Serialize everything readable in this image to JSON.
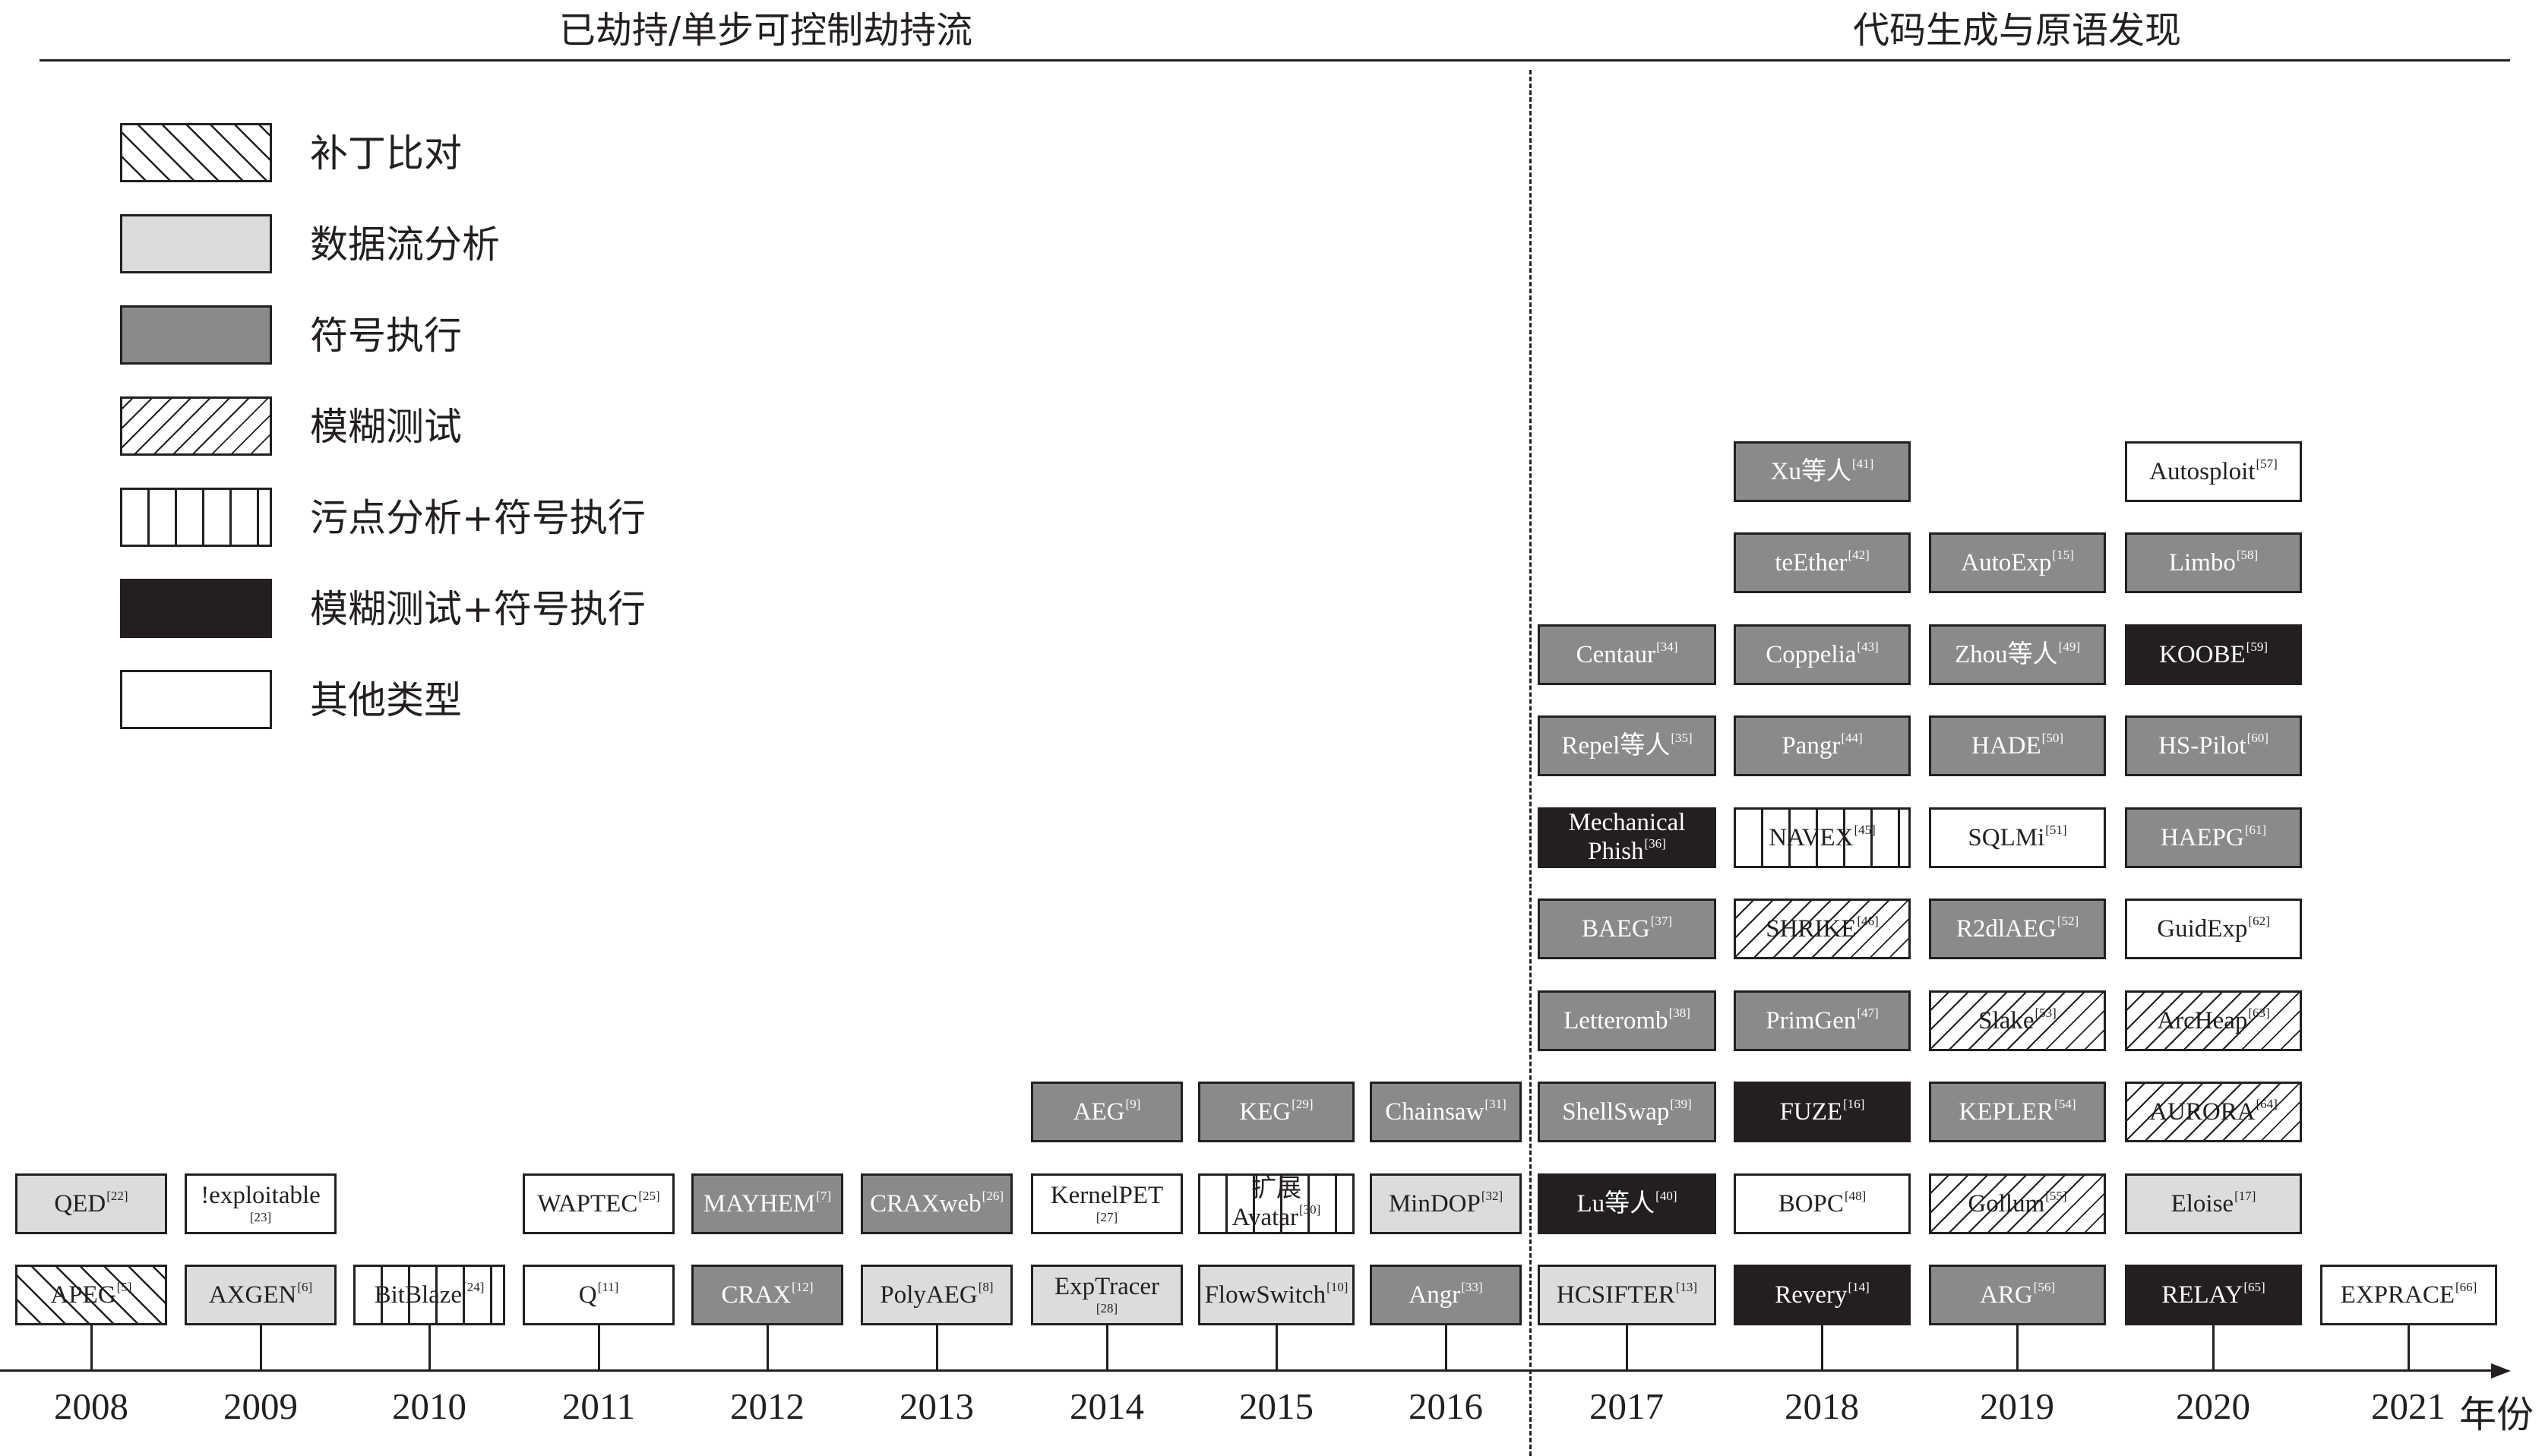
{
  "headers": {
    "left_section": "已劫持/单步可控制劫持流",
    "right_section": "代码生成与原语发现"
  },
  "legend": [
    {
      "key": "patch",
      "label": "补丁比对"
    },
    {
      "key": "light",
      "label": "数据流分析"
    },
    {
      "key": "gray",
      "label": "符号执行"
    },
    {
      "key": "fuzz",
      "label": "模糊测试"
    },
    {
      "key": "taint",
      "label": "污点分析+符号执行"
    },
    {
      "key": "black",
      "label": "模糊测试+符号执行"
    },
    {
      "key": "white",
      "label": "其他类型"
    }
  ],
  "axis": {
    "unit_label": "年份"
  },
  "years": [
    "2008",
    "2009",
    "2010",
    "2011",
    "2012",
    "2013",
    "2014",
    "2015",
    "2016",
    "2017",
    "2018",
    "2019",
    "2020",
    "2021"
  ],
  "colors": {
    "ink": "#231f20",
    "light_fill": "#dcdcdd",
    "gray_fill": "#8a8a8c",
    "black_fill": "#231f20",
    "white_fill": "#ffffff"
  },
  "columns": [
    {
      "year": "2008",
      "tools": [
        {
          "name": "APEG",
          "ref": "[5]",
          "type": "patch"
        },
        {
          "name": "QED",
          "ref": "[22]",
          "type": "light"
        }
      ]
    },
    {
      "year": "2009",
      "tools": [
        {
          "name": "AXGEN",
          "ref": "[6]",
          "type": "light"
        },
        {
          "name": "!exploitable",
          "ref": "[23]",
          "type": "white",
          "ref_below": true
        }
      ]
    },
    {
      "year": "2010",
      "tools": [
        {
          "name": "BitBlaze",
          "ref": "[24]",
          "type": "taint"
        }
      ]
    },
    {
      "year": "2011",
      "tools": [
        {
          "name": "Q",
          "ref": "[11]",
          "type": "white"
        },
        {
          "name": "WAPTEC",
          "ref": "[25]",
          "type": "white"
        }
      ]
    },
    {
      "year": "2012",
      "tools": [
        {
          "name": "CRAX",
          "ref": "[12]",
          "type": "gray"
        },
        {
          "name": "MAYHEM",
          "ref": "[7]",
          "type": "gray"
        }
      ]
    },
    {
      "year": "2013",
      "tools": [
        {
          "name": "PolyAEG",
          "ref": "[8]",
          "type": "light"
        },
        {
          "name": "CRAXweb",
          "ref": "[26]",
          "type": "gray"
        }
      ]
    },
    {
      "year": "2014",
      "tools": [
        {
          "name": "ExpTracer",
          "ref": "[28]",
          "type": "light",
          "ref_below": true
        },
        {
          "name": "KernelPET",
          "ref": "[27]",
          "type": "white",
          "ref_below": true
        },
        {
          "name": "AEG",
          "ref": "[9]",
          "type": "gray"
        }
      ]
    },
    {
      "year": "2015",
      "tools": [
        {
          "name": "FlowSwitch",
          "ref": "[10]",
          "type": "light"
        },
        {
          "name": "扩展Avatar",
          "line1": "扩展",
          "line2": "Avatar",
          "ref": "[30]",
          "type": "taint"
        },
        {
          "name": "KEG",
          "ref": "[29]",
          "type": "gray"
        }
      ]
    },
    {
      "year": "2016",
      "tools": [
        {
          "name": "Angr",
          "ref": "[33]",
          "type": "gray"
        },
        {
          "name": "MinDOP",
          "ref": "[32]",
          "type": "light"
        },
        {
          "name": "Chainsaw",
          "ref": "[31]",
          "type": "gray"
        }
      ]
    },
    {
      "year": "2017",
      "tools": [
        {
          "name": "HCSIFTER",
          "ref": "[13]",
          "type": "light"
        },
        {
          "name": "Lu等人",
          "ref": "[40]",
          "type": "black"
        },
        {
          "name": "ShellSwap",
          "ref": "[39]",
          "type": "gray"
        },
        {
          "name": "Letteromb",
          "ref": "[38]",
          "type": "gray"
        },
        {
          "name": "BAEG",
          "ref": "[37]",
          "type": "gray"
        },
        {
          "name": "Mechanical Phish",
          "line1": "Mechanical",
          "line2": "Phish",
          "ref": "[36]",
          "type": "black"
        },
        {
          "name": "Repel等人",
          "ref": "[35]",
          "type": "gray"
        },
        {
          "name": "Centaur",
          "ref": "[34]",
          "type": "gray"
        }
      ]
    },
    {
      "year": "2018",
      "tools": [
        {
          "name": "Revery",
          "ref": "[14]",
          "type": "black"
        },
        {
          "name": "BOPC",
          "ref": "[48]",
          "type": "white"
        },
        {
          "name": "FUZE",
          "ref": "[16]",
          "type": "black"
        },
        {
          "name": "PrimGen",
          "ref": "[47]",
          "type": "gray"
        },
        {
          "name": "SHRIKE",
          "ref": "[46]",
          "type": "fuzz"
        },
        {
          "name": "NAVEX",
          "ref": "[45]",
          "type": "taint"
        },
        {
          "name": "Pangr",
          "ref": "[44]",
          "type": "gray"
        },
        {
          "name": "Coppelia",
          "ref": "[43]",
          "type": "gray"
        },
        {
          "name": "teEther",
          "ref": "[42]",
          "type": "gray"
        },
        {
          "name": "Xu等人",
          "ref": "[41]",
          "type": "gray"
        }
      ]
    },
    {
      "year": "2019",
      "tools": [
        {
          "name": "ARG",
          "ref": "[56]",
          "type": "gray"
        },
        {
          "name": "Gollum",
          "ref": "[55]",
          "type": "fuzz"
        },
        {
          "name": "KEPLER",
          "ref": "[54]",
          "type": "gray"
        },
        {
          "name": "Slake",
          "ref": "[53]",
          "type": "fuzz"
        },
        {
          "name": "R2dlAEG",
          "ref": "[52]",
          "type": "gray"
        },
        {
          "name": "SQLMi",
          "ref": "[51]",
          "type": "white"
        },
        {
          "name": "HADE",
          "ref": "[50]",
          "type": "gray"
        },
        {
          "name": "Zhou等人",
          "ref": "[49]",
          "type": "gray"
        },
        {
          "name": "AutoExp",
          "ref": "[15]",
          "type": "gray"
        }
      ]
    },
    {
      "year": "2020",
      "tools": [
        {
          "name": "RELAY",
          "ref": "[65]",
          "type": "black"
        },
        {
          "name": "Eloise",
          "ref": "[17]",
          "type": "light"
        },
        {
          "name": "AURORA",
          "ref": "[64]",
          "type": "fuzz"
        },
        {
          "name": "ArcHeap",
          "ref": "[63]",
          "type": "fuzz"
        },
        {
          "name": "GuidExp",
          "ref": "[62]",
          "type": "white"
        },
        {
          "name": "HAEPG",
          "ref": "[61]",
          "type": "gray"
        },
        {
          "name": "HS-Pilot",
          "ref": "[60]",
          "type": "gray"
        },
        {
          "name": "KOOBE",
          "ref": "[59]",
          "type": "black"
        },
        {
          "name": "Limbo",
          "ref": "[58]",
          "type": "gray"
        },
        {
          "name": "Autosploit",
          "ref": "[57]",
          "type": "white"
        }
      ]
    },
    {
      "year": "2021",
      "tools": [
        {
          "name": "EXPRACE",
          "ref": "[66]",
          "type": "white"
        }
      ]
    }
  ]
}
